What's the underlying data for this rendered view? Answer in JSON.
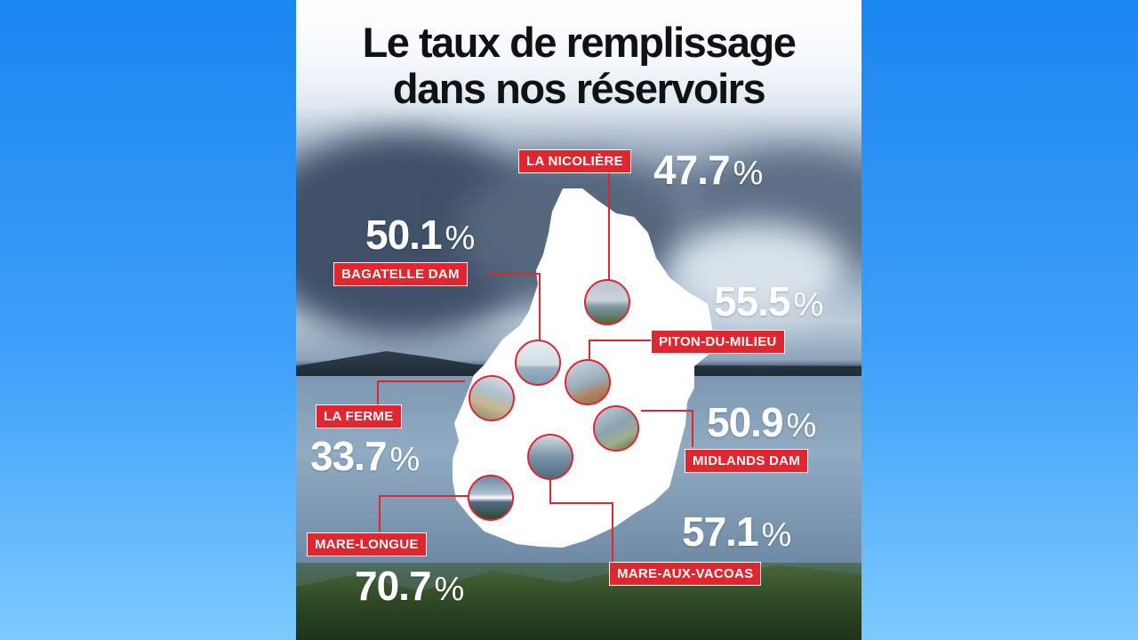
{
  "title": {
    "line1": "Le taux de remplissage",
    "line2": "dans nos réservoirs"
  },
  "percent_sign": "%",
  "reservoirs": [
    {
      "name": "LA NICOLIÈRE",
      "value": "47.7"
    },
    {
      "name": "BAGATELLE DAM",
      "value": "50.1"
    },
    {
      "name": "PITON-DU-MILIEU",
      "value": "55.5"
    },
    {
      "name": "LA FERME",
      "value": "33.7"
    },
    {
      "name": "MIDLANDS DAM",
      "value": "50.9"
    },
    {
      "name": "MARE-LONGUE",
      "value": "70.7"
    },
    {
      "name": "MARE-AUX-VACOAS",
      "value": "57.1"
    }
  ],
  "colors": {
    "label_bg": "#e0262e",
    "map_fill": "#ffffff",
    "page_bg": "#1a86f0"
  }
}
